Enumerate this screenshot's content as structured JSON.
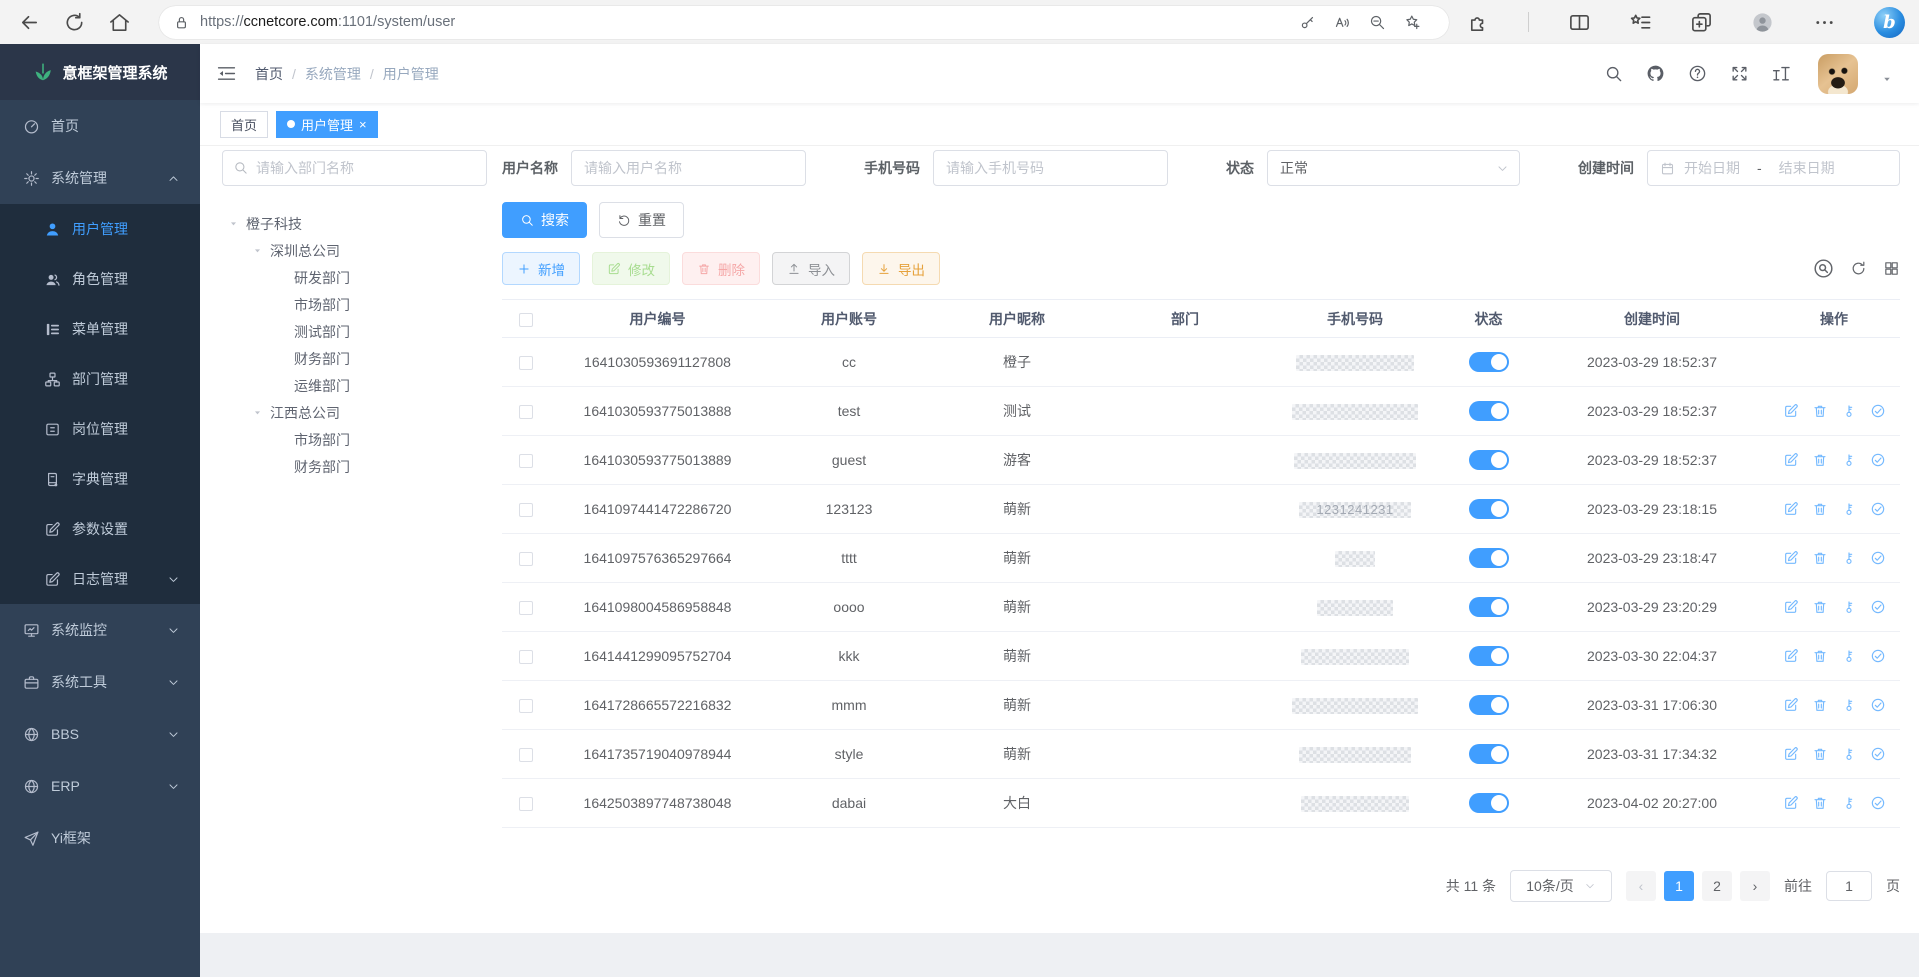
{
  "browser": {
    "url": {
      "scheme": "https://",
      "host": "ccnetcore.com",
      "path": ":1101/system/user"
    },
    "left_icons": [
      "back",
      "reload",
      "home"
    ],
    "pill_icons": [
      "lock",
      "key",
      "read-aloud",
      "zoom-out",
      "star-add"
    ],
    "right_icons": [
      "extensions",
      "split",
      "favorites",
      "collections",
      "profile",
      "dots",
      "bing"
    ]
  },
  "sidebar": {
    "logo_title": "意框架管理系统",
    "logo_icon": "leaf",
    "menu": [
      {
        "key": "home",
        "label": "首页",
        "icon": "dashboard"
      },
      {
        "key": "system",
        "label": "系统管理",
        "icon": "gear",
        "expanded": true,
        "arrow": "up",
        "children": [
          {
            "key": "user-mgmt",
            "label": "用户管理",
            "icon": "user",
            "active": true
          },
          {
            "key": "role-mgmt",
            "label": "角色管理",
            "icon": "users"
          },
          {
            "key": "menu-mgmt",
            "label": "菜单管理",
            "icon": "menu-tree"
          },
          {
            "key": "dept-mgmt",
            "label": "部门管理",
            "icon": "dept-tree"
          },
          {
            "key": "post-mgmt",
            "label": "岗位管理",
            "icon": "post"
          },
          {
            "key": "dict-mgmt",
            "label": "字典管理",
            "icon": "dict"
          },
          {
            "key": "param-settings",
            "label": "参数设置",
            "icon": "edit-square"
          },
          {
            "key": "log-mgmt",
            "label": "日志管理",
            "icon": "log",
            "arrow": "down"
          }
        ]
      },
      {
        "key": "monitor",
        "label": "系统监控",
        "icon": "monitor",
        "arrow": "down"
      },
      {
        "key": "tools",
        "label": "系统工具",
        "icon": "tool",
        "arrow": "down"
      },
      {
        "key": "bbs",
        "label": "BBS",
        "icon": "globe",
        "arrow": "down"
      },
      {
        "key": "erp",
        "label": "ERP",
        "icon": "globe",
        "arrow": "down"
      },
      {
        "key": "yi-framework",
        "label": "Yi框架",
        "icon": "guide"
      }
    ]
  },
  "navbar": {
    "breadcrumbs": [
      "首页",
      "系统管理",
      "用户管理"
    ],
    "tool_icons": [
      "search",
      "github",
      "question",
      "fullscreen",
      "font-size"
    ]
  },
  "tags": [
    {
      "label": "首页",
      "active": false,
      "closable": false
    },
    {
      "label": "用户管理",
      "active": true,
      "closable": true
    }
  ],
  "dept_panel": {
    "search_placeholder": "请输入部门名称",
    "tree": [
      {
        "label": "橙子科技",
        "depth": 0,
        "expandable": true
      },
      {
        "label": "深圳总公司",
        "depth": 1,
        "expandable": true
      },
      {
        "label": "研发部门",
        "depth": 2
      },
      {
        "label": "市场部门",
        "depth": 2
      },
      {
        "label": "测试部门",
        "depth": 2
      },
      {
        "label": "财务部门",
        "depth": 2
      },
      {
        "label": "运维部门",
        "depth": 2
      },
      {
        "label": "江西总公司",
        "depth": 1,
        "expandable": true
      },
      {
        "label": "市场部门",
        "depth": 2
      },
      {
        "label": "财务部门",
        "depth": 2
      }
    ]
  },
  "filters": {
    "username_label": "用户名称",
    "username_placeholder": "请输入用户名称",
    "phone_label": "手机号码",
    "phone_placeholder": "请输入手机号码",
    "status_label": "状态",
    "status_value": "正常",
    "created_label": "创建时间",
    "date_start_placeholder": "开始日期",
    "date_separator": "-",
    "date_end_placeholder": "结束日期",
    "search_label": "搜索",
    "reset_label": "重置"
  },
  "toolbar": {
    "add": "新增",
    "modify": "修改",
    "delete": "删除",
    "import": "导入",
    "export": "导出",
    "mini_icons": [
      "circle-search",
      "refresh-mini",
      "grid"
    ]
  },
  "table": {
    "columns": [
      "用户编号",
      "用户账号",
      "用户昵称",
      "部门",
      "手机号码",
      "状态",
      "创建时间",
      "操作"
    ],
    "op_icons": [
      "edit-square",
      "trash",
      "key-op",
      "check-circle"
    ],
    "rows": [
      {
        "id": "1641030593691127808",
        "account": "cc",
        "nickname": "橙子",
        "dept": "",
        "phone_visible": "",
        "phone_mask_width": 118,
        "status_on": true,
        "created": "2023-03-29 18:52:37",
        "has_ops": false
      },
      {
        "id": "1641030593775013888",
        "account": "test",
        "nickname": "测试",
        "dept": "",
        "phone_visible": "",
        "phone_mask_width": 126,
        "status_on": true,
        "created": "2023-03-29 18:52:37",
        "has_ops": true
      },
      {
        "id": "1641030593775013889",
        "account": "guest",
        "nickname": "游客",
        "dept": "",
        "phone_visible": "",
        "phone_mask_width": 122,
        "status_on": true,
        "created": "2023-03-29 18:52:37",
        "has_ops": true
      },
      {
        "id": "1641097441472286720",
        "account": "123123",
        "nickname": "萌新",
        "dept": "",
        "phone_visible": "1231241231",
        "phone_mask_width": 112,
        "status_on": true,
        "created": "2023-03-29 23:18:15",
        "has_ops": true
      },
      {
        "id": "1641097576365297664",
        "account": "tttt",
        "nickname": "萌新",
        "dept": "",
        "phone_visible": "",
        "phone_mask_width": 40,
        "status_on": true,
        "created": "2023-03-29 23:18:47",
        "has_ops": true
      },
      {
        "id": "1641098004586958848",
        "account": "oooo",
        "nickname": "萌新",
        "dept": "",
        "phone_visible": "",
        "phone_mask_width": 76,
        "status_on": true,
        "created": "2023-03-29 23:20:29",
        "has_ops": true
      },
      {
        "id": "1641441299095752704",
        "account": "kkk",
        "nickname": "萌新",
        "dept": "",
        "phone_visible": "",
        "phone_mask_width": 108,
        "status_on": true,
        "created": "2023-03-30 22:04:37",
        "has_ops": true
      },
      {
        "id": "1641728665572216832",
        "account": "mmm",
        "nickname": "萌新",
        "dept": "",
        "phone_visible": "",
        "phone_mask_width": 126,
        "status_on": true,
        "created": "2023-03-31 17:06:30",
        "has_ops": true
      },
      {
        "id": "1641735719040978944",
        "account": "style",
        "nickname": "萌新",
        "dept": "",
        "phone_visible": "",
        "phone_mask_width": 112,
        "status_on": true,
        "created": "2023-03-31 17:34:32",
        "has_ops": true
      },
      {
        "id": "1642503897748738048",
        "account": "dabai",
        "nickname": "大白",
        "dept": "",
        "phone_visible": "",
        "phone_mask_width": 108,
        "status_on": true,
        "created": "2023-04-02 20:27:00",
        "has_ops": true
      }
    ]
  },
  "pagination": {
    "total": "共 11 条",
    "page_size": "10条/页",
    "prev": "‹",
    "next": "›",
    "pages": [
      "1",
      "2"
    ],
    "active_page": "1",
    "goto_label": "前往",
    "goto_value": "1",
    "page_unit": "页"
  }
}
